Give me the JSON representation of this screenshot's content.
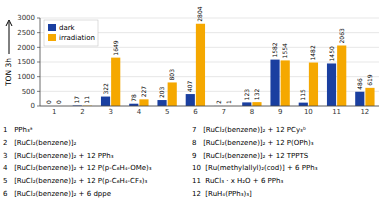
{
  "chart_data": {
    "type": "bar",
    "y_label": "TON 3h",
    "categories": [
      1,
      2,
      3,
      4,
      5,
      6,
      7,
      8,
      9,
      10,
      11,
      12
    ],
    "series": [
      {
        "name": "dark",
        "color": "#1a3fa0",
        "values": [
          0,
          17,
          322,
          78,
          203,
          407,
          2,
          123,
          1582,
          115,
          1450,
          486
        ]
      },
      {
        "name": "irradiation",
        "color": "#f5a800",
        "values": [
          0,
          11,
          1649,
          227,
          803,
          2804,
          1,
          132,
          1554,
          1482,
          2063,
          619
        ]
      }
    ],
    "ylim": [
      0,
      3000
    ],
    "yticks": [
      0,
      500,
      1000,
      1500,
      2000,
      2500,
      3000
    ],
    "grid": true,
    "legend": "upper left",
    "data_labels": true,
    "annotations": [
      "1   PPh₃ᵃ",
      "2   [RuCl₂(benzene)]₂",
      "3   [RuCl₂(benzene)]₂ + 12 PPh₃",
      "4   [RuCl₂(benzene)]₂ + 12 P(p-C₆H₄-OMe)₃",
      "5   [RuCl₂(benzene)]₂ + 12 P(p-C₆H₄-CF₃)₃",
      "6   [RuCl₂(benzene)]₂ + 6 dppe",
      "7   [RuCl₂(benzene)]₂ + 12 PCy₃ᵇ",
      "8   [RuCl₂(benzene)]₂ + 12 P(OPh)₃",
      "9   [RuCl₂(benzene)]₂ + 12 TPPTS",
      "10  [Ru(methylallyl)₂(cod)] + 6 PPh₃",
      "11  RuCl₃ · x H₂O + 6 PPh₃",
      "12  [RuH₄(PPh₃)₃]"
    ]
  }
}
